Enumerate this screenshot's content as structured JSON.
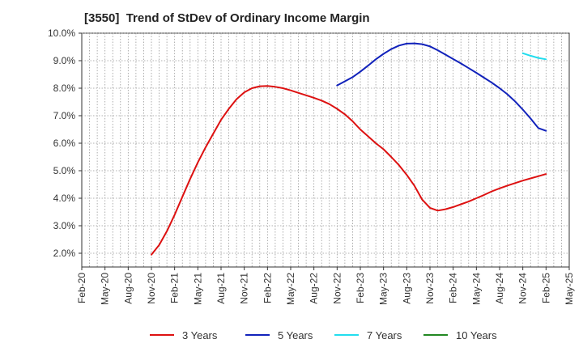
{
  "chart_data": {
    "type": "line",
    "title": "[3550]  Trend of StDev of Ordinary Income Margin",
    "xlabel": "",
    "ylabel": "",
    "x_ticks": [
      "Feb-20",
      "May-20",
      "Aug-20",
      "Nov-20",
      "Feb-21",
      "May-21",
      "Aug-21",
      "Nov-21",
      "Feb-22",
      "May-22",
      "Aug-22",
      "Nov-22",
      "Feb-23",
      "May-23",
      "Aug-23",
      "Nov-23",
      "Feb-24",
      "May-24",
      "Aug-24",
      "Nov-24",
      "Feb-25",
      "May-25"
    ],
    "y_ticks": [
      "2.0%",
      "3.0%",
      "4.0%",
      "5.0%",
      "6.0%",
      "7.0%",
      "8.0%",
      "9.0%",
      "10.0%"
    ],
    "ylim": [
      1.5,
      10.0
    ],
    "grid": true,
    "legend_position": "bottom",
    "series": [
      {
        "name": "3 Years",
        "color": "#dd1111",
        "x": [
          "Nov-20",
          "Dec-20",
          "Jan-21",
          "Feb-21",
          "Mar-21",
          "Apr-21",
          "May-21",
          "Jun-21",
          "Jul-21",
          "Aug-21",
          "Sep-21",
          "Oct-21",
          "Nov-21",
          "Dec-21",
          "Jan-22",
          "Feb-22",
          "Mar-22",
          "Apr-22",
          "May-22",
          "Jun-22",
          "Jul-22",
          "Aug-22",
          "Sep-22",
          "Oct-22",
          "Nov-22",
          "Dec-22",
          "Jan-23",
          "Feb-23",
          "Mar-23",
          "Apr-23",
          "May-23",
          "Jun-23",
          "Jul-23",
          "Aug-23",
          "Sep-23",
          "Oct-23",
          "Nov-23",
          "Dec-23",
          "Jan-24",
          "Feb-24",
          "Mar-24",
          "Apr-24",
          "May-24",
          "Jun-24",
          "Jul-24",
          "Aug-24",
          "Sep-24",
          "Oct-24",
          "Nov-24",
          "Dec-24",
          "Jan-25",
          "Feb-25"
        ],
        "values": [
          1.95,
          2.3,
          2.8,
          3.4,
          4.05,
          4.7,
          5.3,
          5.85,
          6.35,
          6.85,
          7.25,
          7.6,
          7.85,
          8.0,
          8.07,
          8.08,
          8.05,
          8.0,
          7.92,
          7.83,
          7.74,
          7.65,
          7.55,
          7.42,
          7.25,
          7.05,
          6.8,
          6.5,
          6.25,
          6.0,
          5.78,
          5.5,
          5.2,
          4.85,
          4.45,
          3.95,
          3.65,
          3.55,
          3.6,
          3.68,
          3.78,
          3.88,
          4.0,
          4.12,
          4.25,
          4.36,
          4.46,
          4.55,
          4.64,
          4.72,
          4.8,
          4.88
        ]
      },
      {
        "name": "5 Years",
        "color": "#1122bb",
        "x": [
          "Nov-22",
          "Dec-22",
          "Jan-23",
          "Feb-23",
          "Mar-23",
          "Apr-23",
          "May-23",
          "Jun-23",
          "Jul-23",
          "Aug-23",
          "Sep-23",
          "Oct-23",
          "Nov-23",
          "Dec-23",
          "Jan-24",
          "Feb-24",
          "Mar-24",
          "Apr-24",
          "May-24",
          "Jun-24",
          "Jul-24",
          "Aug-24",
          "Sep-24",
          "Oct-24",
          "Nov-24",
          "Dec-24",
          "Jan-25",
          "Feb-25"
        ],
        "values": [
          8.1,
          8.25,
          8.4,
          8.6,
          8.82,
          9.05,
          9.25,
          9.42,
          9.55,
          9.62,
          9.63,
          9.6,
          9.52,
          9.38,
          9.22,
          9.06,
          8.9,
          8.73,
          8.56,
          8.38,
          8.2,
          8.0,
          7.78,
          7.52,
          7.22,
          6.9,
          6.55,
          6.45
        ]
      },
      {
        "name": "7 Years",
        "color": "#22ddee",
        "x": [
          "Nov-24",
          "Dec-24",
          "Jan-25",
          "Feb-25"
        ],
        "values": [
          9.27,
          9.18,
          9.1,
          9.05
        ]
      },
      {
        "name": "10 Years",
        "color": "#228822",
        "x": [],
        "values": []
      }
    ]
  }
}
